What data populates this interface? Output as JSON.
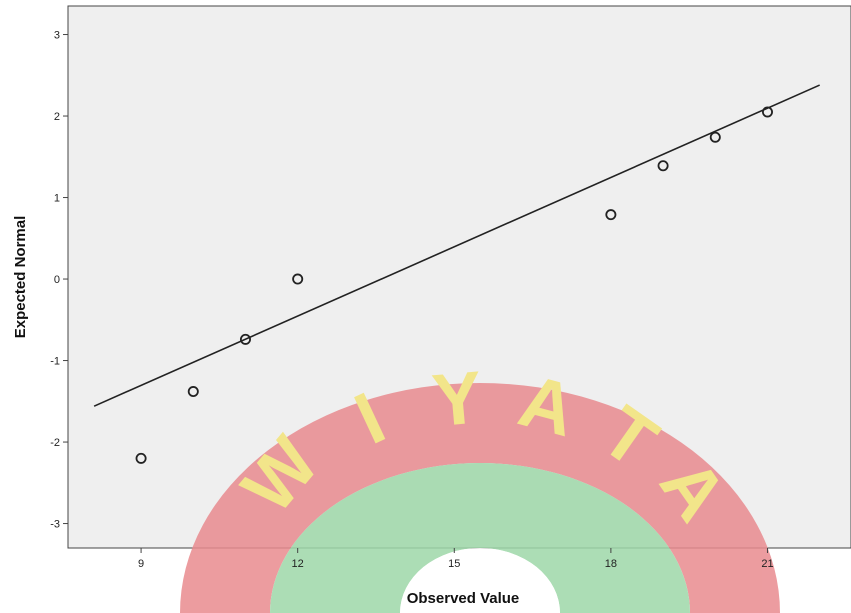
{
  "chart_data": {
    "type": "scatter",
    "xlabel": "Observed Value",
    "ylabel": "Expected Normal",
    "xlim": [
      7.6,
      22.6
    ],
    "ylim": [
      -3.3,
      3.35
    ],
    "x_ticks": [
      9,
      12,
      15,
      18,
      21
    ],
    "y_ticks": [
      -3,
      -2,
      -1,
      0,
      1,
      2,
      3
    ],
    "grid": false,
    "series": [
      {
        "values_x": [
          9,
          10,
          11,
          12,
          18,
          19,
          20,
          21
        ],
        "values_y": [
          -2.2,
          -1.38,
          -0.74,
          0.0,
          0.79,
          1.39,
          1.74,
          2.05
        ]
      }
    ],
    "reference_line": {
      "x": [
        8.1,
        22.0
      ],
      "y": [
        -1.56,
        2.38
      ]
    },
    "colors": {
      "plot_background": "#efefef",
      "marker": "#222222",
      "line": "#222222",
      "watermark_red": "#e98b8f",
      "watermark_yellow": "#f3e479",
      "watermark_green": "#9ed8a9"
    },
    "watermark": {
      "text": "WIYATA"
    }
  }
}
